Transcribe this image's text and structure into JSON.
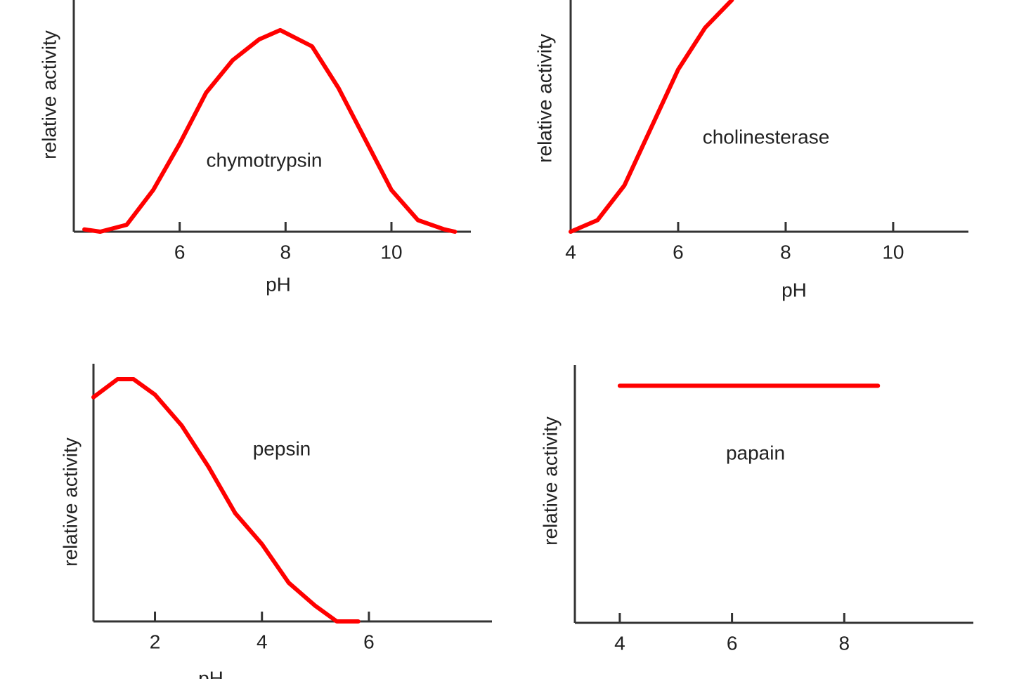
{
  "chart_data": [
    {
      "type": "line",
      "annotation": "chymotrypsin",
      "xlabel": "pH",
      "ylabel": "relative activity",
      "color": "#ff0000",
      "x": [
        4.2,
        4.5,
        5,
        5.5,
        6,
        6.5,
        7,
        7.5,
        7.9,
        8.5,
        9,
        9.5,
        10,
        10.5,
        11,
        11.2
      ],
      "values": [
        0.01,
        0,
        0.03,
        0.18,
        0.38,
        0.6,
        0.74,
        0.83,
        0.87,
        0.8,
        0.62,
        0.4,
        0.18,
        0.05,
        0.01,
        0
      ],
      "xlim": [
        4,
        11.5
      ],
      "xticks": [
        6,
        8,
        10
      ],
      "ylim": [
        0,
        1
      ]
    },
    {
      "type": "line",
      "annotation": "cholinesterase",
      "xlabel": "pH",
      "ylabel": "relative activity",
      "color": "#ff0000",
      "x": [
        4,
        4.5,
        5,
        5.5,
        6,
        6.5,
        7
      ],
      "values": [
        0,
        0.05,
        0.2,
        0.45,
        0.7,
        0.88,
        1.0
      ],
      "xlim": [
        4,
        11.4
      ],
      "xticks": [
        4,
        6,
        8,
        10
      ],
      "ylim": [
        0,
        1
      ]
    },
    {
      "type": "line",
      "annotation": "pepsin",
      "xlabel": "pH",
      "ylabel": "relative activity",
      "color": "#ff0000",
      "x": [
        0.85,
        1.3,
        1.6,
        2,
        2.5,
        3,
        3.5,
        4,
        4.5,
        5,
        5.4,
        5.8
      ],
      "values": [
        0.87,
        0.94,
        0.94,
        0.88,
        0.76,
        0.6,
        0.42,
        0.3,
        0.15,
        0.06,
        0,
        0
      ],
      "xlim": [
        0.85,
        8.3
      ],
      "xticks": [
        2,
        4,
        6
      ],
      "ylim": [
        0,
        1
      ]
    },
    {
      "type": "line",
      "annotation": "papain",
      "ylabel": "relative activity",
      "color": "#ff0000",
      "x": [
        4,
        8.6
      ],
      "values": [
        0.92,
        0.92
      ],
      "xlim": [
        3.2,
        10.3
      ],
      "xticks": [
        4,
        6,
        8
      ],
      "ylim": [
        0,
        1
      ]
    }
  ]
}
